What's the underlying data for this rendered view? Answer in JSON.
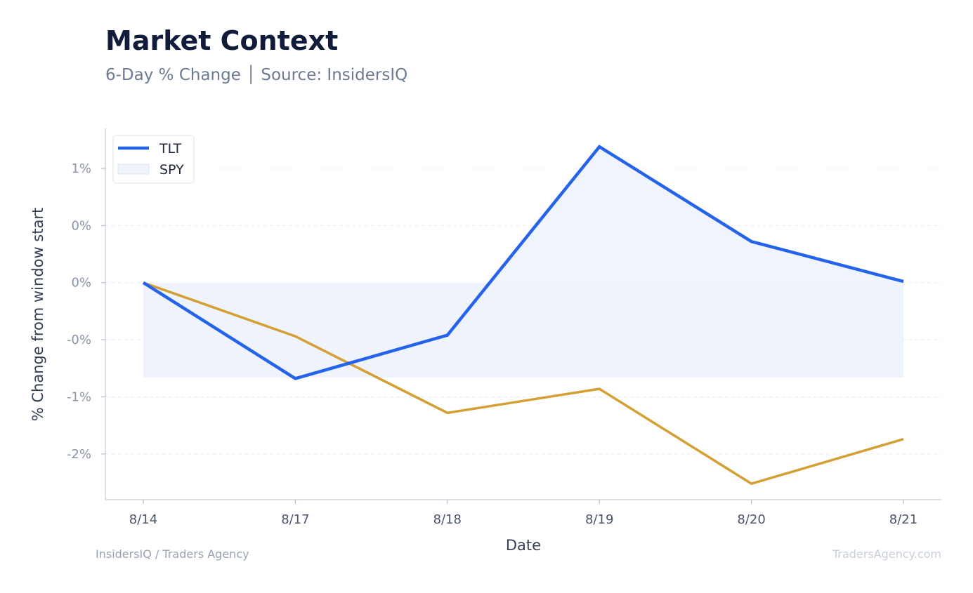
{
  "header": {
    "title": "Market Context",
    "subtitle": "6-Day % Change │ Source: InsidersIQ"
  },
  "footer": {
    "left": "InsidersIQ / Traders Agency",
    "right": "TradersAgency.com"
  },
  "chart_data": {
    "type": "line",
    "xlabel": "Date",
    "ylabel": "% Change from window start",
    "categories": [
      "8/14",
      "8/17",
      "8/18",
      "8/19",
      "8/20",
      "8/21"
    ],
    "y_ticks": [
      {
        "value": 1.0,
        "label": "1%"
      },
      {
        "value": 0.5,
        "label": "0%"
      },
      {
        "value": 0.0,
        "label": "0%"
      },
      {
        "value": -0.5,
        "label": "-0%"
      },
      {
        "value": -1.0,
        "label": "-1%"
      },
      {
        "value": -1.5,
        "label": "-2%"
      }
    ],
    "ylim": [
      -1.9,
      1.35
    ],
    "grid": "horizontal-dashed",
    "legend_position": "top-left",
    "series": [
      {
        "name": "TLT",
        "color": "#2563eb",
        "values": [
          0.0,
          -0.84,
          -0.46,
          1.19,
          0.36,
          0.01
        ]
      },
      {
        "name": "SPY",
        "color": "#d4a033",
        "values": [
          0.0,
          -0.47,
          -1.14,
          -0.93,
          -1.76,
          -1.37
        ]
      }
    ],
    "band": {
      "legend_label": "SPY",
      "color": "#eef3fc",
      "range": [
        -0.83,
        0.0
      ]
    }
  }
}
